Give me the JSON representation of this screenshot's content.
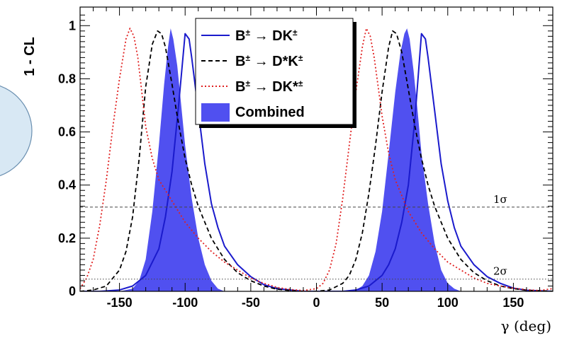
{
  "chart_data": {
    "type": "line",
    "xlabel": "γ (deg)",
    "ylabel": "1 - CL",
    "xlim": [
      -180,
      180
    ],
    "ylim": [
      0,
      1.07
    ],
    "x_ticks": [
      -150,
      -100,
      -50,
      0,
      50,
      100,
      150
    ],
    "x_tick_labels": [
      "-150",
      "-100",
      "-50",
      "0",
      "50",
      "100",
      "150"
    ],
    "y_ticks": [
      0,
      0.2,
      0.4,
      0.6,
      0.8,
      1
    ],
    "y_tick_labels": [
      "0",
      "0.2",
      "0.4",
      "0.6",
      "0.8",
      "1"
    ],
    "grid": false,
    "legend_position": "top-center",
    "reference_lines": [
      {
        "label": "1σ",
        "y": 0.317
      },
      {
        "label": "2σ",
        "y": 0.046
      }
    ],
    "series": [
      {
        "name": "B± → DK±",
        "label_parts": [
          "B",
          "±",
          " → DK",
          "±"
        ],
        "style": "solid",
        "color": "#1a1acc",
        "fill": false,
        "x": [
          -180,
          -165,
          -150,
          -140,
          -130,
          -120,
          -115,
          -110,
          -105,
          -100,
          -97,
          -95,
          -90,
          -85,
          -80,
          -75,
          -70,
          -60,
          -50,
          -40,
          -30,
          -10,
          0,
          20,
          30,
          40,
          50,
          55,
          60,
          65,
          70,
          75,
          80,
          83,
          85,
          90,
          95,
          100,
          105,
          110,
          120,
          130,
          140,
          150,
          160,
          180
        ],
        "y": [
          0,
          0,
          0.005,
          0.02,
          0.06,
          0.16,
          0.28,
          0.45,
          0.7,
          0.97,
          0.95,
          0.88,
          0.68,
          0.48,
          0.33,
          0.24,
          0.17,
          0.1,
          0.055,
          0.025,
          0.01,
          0,
          0,
          0,
          0.005,
          0.02,
          0.06,
          0.1,
          0.16,
          0.26,
          0.4,
          0.65,
          0.97,
          0.95,
          0.88,
          0.68,
          0.48,
          0.34,
          0.24,
          0.17,
          0.1,
          0.055,
          0.03,
          0.012,
          0.004,
          0
        ]
      },
      {
        "name": "B± → D*K±",
        "label_parts": [
          "B",
          "±",
          " → D*K",
          "±"
        ],
        "style": "dashed",
        "color": "#000000",
        "fill": false,
        "x": [
          -180,
          -170,
          -160,
          -150,
          -145,
          -140,
          -135,
          -130,
          -125,
          -121,
          -118,
          -115,
          -110,
          -105,
          -100,
          -95,
          -90,
          -85,
          -80,
          -75,
          -70,
          -60,
          -50,
          -40,
          -30,
          -20,
          -10,
          0,
          10,
          20,
          25,
          30,
          35,
          40,
          45,
          50,
          55,
          58,
          61,
          65,
          70,
          75,
          80,
          85,
          90,
          95,
          100,
          105,
          110,
          120,
          130,
          140,
          150,
          160,
          180
        ],
        "y": [
          0,
          0.005,
          0.02,
          0.08,
          0.15,
          0.28,
          0.5,
          0.77,
          0.93,
          0.98,
          0.97,
          0.92,
          0.78,
          0.63,
          0.5,
          0.4,
          0.32,
          0.26,
          0.2,
          0.16,
          0.12,
          0.07,
          0.04,
          0.02,
          0.008,
          0.003,
          0,
          0,
          0.005,
          0.03,
          0.06,
          0.12,
          0.22,
          0.37,
          0.55,
          0.75,
          0.92,
          0.98,
          0.97,
          0.9,
          0.76,
          0.62,
          0.5,
          0.4,
          0.32,
          0.26,
          0.2,
          0.16,
          0.12,
          0.07,
          0.04,
          0.02,
          0.01,
          0.004,
          0
        ]
      },
      {
        "name": "B± → DK*±",
        "label_parts": [
          "B",
          "±",
          " → DK*",
          "±"
        ],
        "style": "dotted",
        "color": "#e02020",
        "fill": false,
        "x": [
          -180,
          -175,
          -170,
          -165,
          -160,
          -155,
          -150,
          -145,
          -142,
          -139,
          -136,
          -133,
          -130,
          -125,
          -120,
          -115,
          -110,
          -105,
          -100,
          -90,
          -80,
          -70,
          -60,
          -50,
          -40,
          -30,
          -20,
          -10,
          0,
          5,
          10,
          15,
          20,
          25,
          30,
          35,
          38,
          41,
          44,
          47,
          50,
          55,
          60,
          65,
          70,
          75,
          80,
          90,
          100,
          110,
          120,
          130,
          140,
          150,
          160,
          170,
          180
        ],
        "y": [
          0.01,
          0.05,
          0.12,
          0.25,
          0.42,
          0.62,
          0.8,
          0.95,
          0.99,
          0.96,
          0.88,
          0.75,
          0.62,
          0.5,
          0.42,
          0.38,
          0.34,
          0.3,
          0.26,
          0.2,
          0.15,
          0.11,
          0.08,
          0.05,
          0.03,
          0.015,
          0.007,
          0.003,
          0.01,
          0.03,
          0.08,
          0.18,
          0.35,
          0.55,
          0.75,
          0.92,
          0.99,
          0.96,
          0.88,
          0.77,
          0.66,
          0.52,
          0.42,
          0.36,
          0.3,
          0.26,
          0.22,
          0.16,
          0.11,
          0.08,
          0.05,
          0.03,
          0.02,
          0.012,
          0.006,
          0.003,
          0.01
        ]
      },
      {
        "name": "Combined",
        "label_parts": [
          "Combined"
        ],
        "style": "filled",
        "color": "#5050f0",
        "fill": true,
        "x": [
          -180,
          -150,
          -140,
          -135,
          -130,
          -125,
          -120,
          -116,
          -113,
          -111,
          -109,
          -106,
          -103,
          -100,
          -95,
          -90,
          -85,
          -80,
          -75,
          -70,
          -60,
          0,
          20,
          30,
          35,
          40,
          45,
          50,
          55,
          60,
          64,
          67,
          69,
          71,
          74,
          77,
          80,
          85,
          90,
          95,
          100,
          105,
          110,
          120,
          180
        ],
        "y": [
          0,
          0,
          0.01,
          0.04,
          0.12,
          0.3,
          0.55,
          0.78,
          0.92,
          0.99,
          0.95,
          0.85,
          0.7,
          0.55,
          0.35,
          0.2,
          0.1,
          0.04,
          0.01,
          0,
          0,
          0,
          0,
          0.005,
          0.02,
          0.06,
          0.15,
          0.3,
          0.52,
          0.75,
          0.9,
          0.97,
          0.99,
          0.95,
          0.83,
          0.68,
          0.52,
          0.33,
          0.18,
          0.08,
          0.03,
          0.01,
          0,
          0,
          0
        ]
      }
    ]
  }
}
